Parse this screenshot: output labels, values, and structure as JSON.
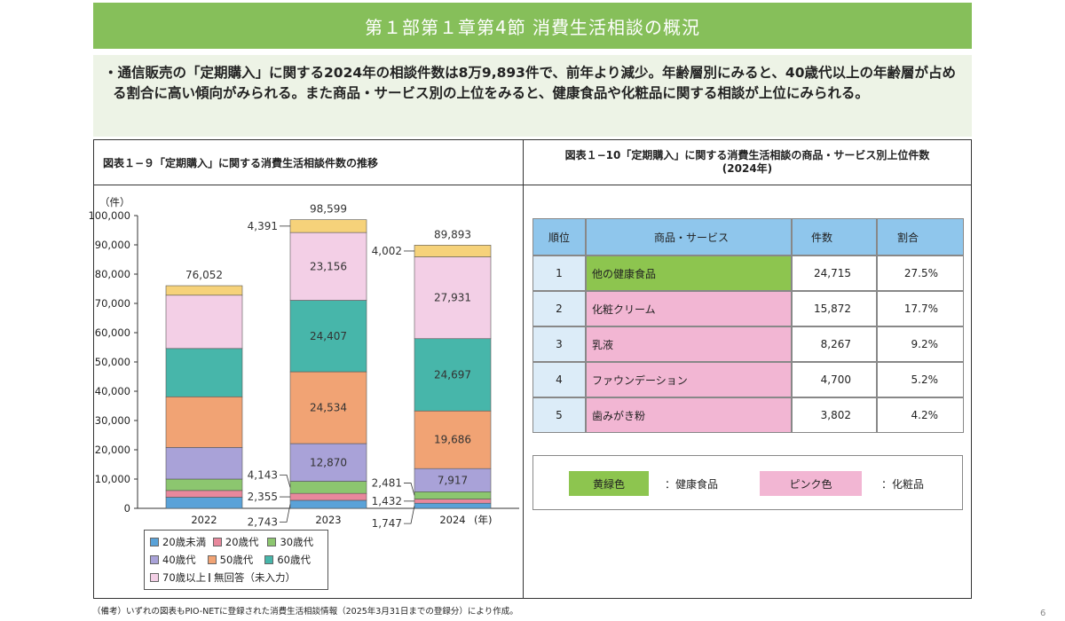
{
  "banner_title": "第１部第１章第4節  消費生活相談の概況",
  "summary": "・通信販売の「定期購入」に関する2024年の相談件数は8万9,893件で、前年より減少。年齢層別にみると、40歳代以上の年齢層が占める割合に高い傾向がみられる。また商品・サービス別の上位をみると、健康食品や化粧品に関する相談が上位にみられる。",
  "left_panel": {
    "title": "図表１−９「定期購入」に関する消費生活相談件数の推移",
    "y_unit": "（件）",
    "year_suffix": "(年)"
  },
  "chart_data": {
    "type": "bar",
    "stacked": true,
    "title": "図表１−９「定期購入」に関する消費生活相談件数の推移",
    "ylabel": "（件）",
    "ylim": [
      0,
      100000
    ],
    "yticks": [
      "0",
      "10,000",
      "20,000",
      "30,000",
      "40,000",
      "50,000",
      "60,000",
      "70,000",
      "80,000",
      "90,000",
      "100,000"
    ],
    "categories": [
      "2022",
      "2023",
      "2024"
    ],
    "totals": [
      "76,052",
      "98,599",
      "89,893"
    ],
    "series": [
      {
        "name": "20歳未満",
        "color": "#5aa2d8",
        "values": [
          3800,
          2743,
          1747
        ]
      },
      {
        "name": "20歳代",
        "color": "#e8889c",
        "values": [
          2300,
          2355,
          1432
        ]
      },
      {
        "name": "30歳代",
        "color": "#8cc66f",
        "values": [
          3900,
          4143,
          2481
        ]
      },
      {
        "name": "40歳代",
        "color": "#a9a2d8",
        "values": [
          10800,
          12870,
          7917
        ]
      },
      {
        "name": "50歳代",
        "color": "#f1a374",
        "values": [
          17300,
          24534,
          19686
        ]
      },
      {
        "name": "60歳代",
        "color": "#47b6aa",
        "values": [
          16500,
          24407,
          24697
        ]
      },
      {
        "name": "70歳以上",
        "color": "#f3cfe6",
        "values": [
          18200,
          23156,
          27931
        ]
      },
      {
        "name": "無回答（未入力）",
        "color": "#f6d27a",
        "values": [
          3252,
          4391,
          4002
        ]
      }
    ],
    "inside_labels": [
      {
        "cat": 1,
        "series": 3,
        "text": "12,870"
      },
      {
        "cat": 1,
        "series": 4,
        "text": "24,534"
      },
      {
        "cat": 1,
        "series": 5,
        "text": "24,407"
      },
      {
        "cat": 1,
        "series": 6,
        "text": "23,156"
      },
      {
        "cat": 2,
        "series": 3,
        "text": "7,917"
      },
      {
        "cat": 2,
        "series": 4,
        "text": "19,686"
      },
      {
        "cat": 2,
        "series": 5,
        "text": "24,697"
      },
      {
        "cat": 2,
        "series": 6,
        "text": "27,931"
      }
    ],
    "callouts": [
      {
        "cat": 1,
        "series": 0,
        "text": "2,743"
      },
      {
        "cat": 1,
        "series": 1,
        "text": "2,355"
      },
      {
        "cat": 1,
        "series": 2,
        "text": "4,143"
      },
      {
        "cat": 1,
        "series": 7,
        "text": "4,391"
      },
      {
        "cat": 2,
        "series": 0,
        "text": "1,747"
      },
      {
        "cat": 2,
        "series": 1,
        "text": "1,432"
      },
      {
        "cat": 2,
        "series": 2,
        "text": "2,481"
      },
      {
        "cat": 2,
        "series": 7,
        "text": "4,002"
      }
    ]
  },
  "legend": [
    {
      "label": "20歳未満",
      "color": "#5aa2d8"
    },
    {
      "label": "20歳代",
      "color": "#e8889c"
    },
    {
      "label": "30歳代",
      "color": "#8cc66f"
    },
    {
      "label": "40歳代",
      "color": "#a9a2d8"
    },
    {
      "label": "50歳代",
      "color": "#f1a374"
    },
    {
      "label": "60歳代",
      "color": "#47b6aa"
    },
    {
      "label": "70歳以上",
      "color": "#f3cfe6"
    },
    {
      "label": "無回答（未入力）",
      "color": "#f6d27a"
    }
  ],
  "right_panel": {
    "title_line1": "図表１−10「定期購入」に関する消費生活相談の商品・サービス別上位件数",
    "title_line2": "(2024年)",
    "headers": [
      "順位",
      "商品・サービス",
      "件数",
      "割合"
    ],
    "rows": [
      {
        "rank": "1",
        "item": "他の健康食品",
        "count": "24,715",
        "share": "27.5%",
        "category": "health"
      },
      {
        "rank": "2",
        "item": "化粧クリーム",
        "count": "15,872",
        "share": "17.7%",
        "category": "cosme"
      },
      {
        "rank": "3",
        "item": "乳液",
        "count": "8,267",
        "share": "9.2%",
        "category": "cosme"
      },
      {
        "rank": "4",
        "item": "ファウンデーション",
        "count": "4,700",
        "share": "5.2%",
        "category": "cosme"
      },
      {
        "rank": "5",
        "item": "歯みがき粉",
        "count": "3,802",
        "share": "4.2%",
        "category": "cosme"
      }
    ],
    "key": {
      "health_swatch": "黄緑色",
      "health_label": "：健康食品",
      "cosme_swatch": "ピンク色",
      "cosme_label": "：化粧品",
      "health_color": "#8dc54f",
      "cosme_color": "#f2b6d3"
    }
  },
  "note": "（備考）いずれの図表もPIO-NETに登録された消費生活相談情報（2025年3月31日までの登録分）により作成。",
  "page_number": "6"
}
